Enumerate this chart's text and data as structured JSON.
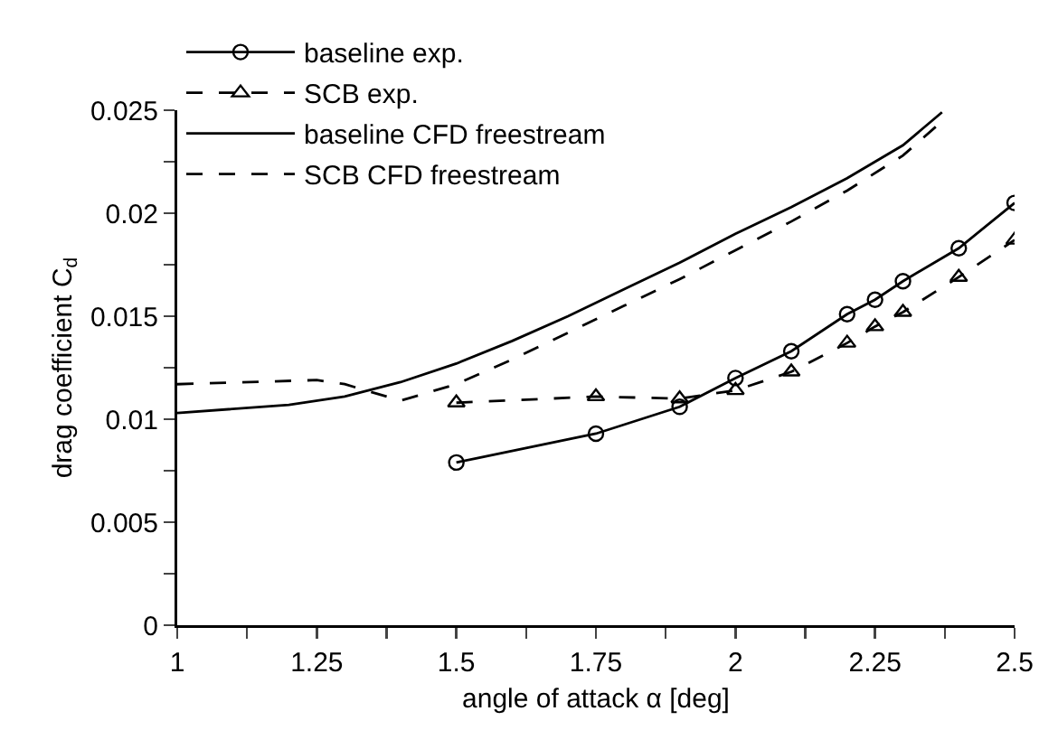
{
  "chart_data": {
    "type": "line",
    "xlabel": "angle of attack α [deg]",
    "ylabel": "drag coefficient C$_{d}$",
    "xlim": [
      1,
      2.5
    ],
    "ylim": [
      0,
      0.025
    ],
    "xticks": [
      1,
      {
        "value": 1.125,
        "label": null
      },
      1.25,
      {
        "value": 1.375,
        "label": null
      },
      1.5,
      {
        "value": 1.625,
        "label": null
      },
      1.75,
      {
        "value": 1.875,
        "label": null
      },
      2,
      {
        "value": 2.125,
        "label": null
      },
      2.25,
      {
        "value": 2.375,
        "label": null
      },
      2.5
    ],
    "yticks": [
      0,
      {
        "value": 0.0025,
        "label": null
      },
      0.005,
      {
        "value": 0.0075,
        "label": null
      },
      0.01,
      {
        "value": 0.0125,
        "label": null
      },
      0.015,
      {
        "value": 0.0175,
        "label": null
      },
      0.02,
      {
        "value": 0.0225,
        "label": null
      },
      0.025
    ],
    "grid": false,
    "legend": "top left",
    "series": [
      {
        "name": "baseline exp.",
        "color": "#000000",
        "marker": "circle",
        "line_style": "solid",
        "x": [
          1.5,
          1.75,
          1.9,
          2.0,
          2.1,
          2.2,
          2.25,
          2.3,
          2.4,
          2.5
        ],
        "values": [
          0.0079,
          0.0093,
          0.0106,
          0.012,
          0.0133,
          0.0151,
          0.0158,
          0.0167,
          0.0183,
          0.0205
        ]
      },
      {
        "name": "SCB exp.",
        "color": "#000000",
        "marker": "triangle",
        "line_style": "dashed",
        "x": [
          1.5,
          1.75,
          1.9,
          2.0,
          2.1,
          2.2,
          2.25,
          2.3,
          2.4,
          2.5
        ],
        "values": [
          0.0108,
          0.0111,
          0.011,
          0.0114,
          0.0123,
          0.0137,
          0.0145,
          0.0152,
          0.0169,
          0.0187
        ]
      },
      {
        "name": "baseline CFD freestream",
        "color": "#000000",
        "marker": "none",
        "line_style": "solid",
        "x": [
          1,
          1.2,
          1.3,
          1.4,
          1.5,
          1.6,
          1.7,
          1.8,
          1.9,
          2.0,
          2.1,
          2.2,
          2.3,
          2.37
        ],
        "values": [
          0.0103,
          0.0107,
          0.0111,
          0.0118,
          0.0127,
          0.0138,
          0.015,
          0.0163,
          0.0176,
          0.019,
          0.0203,
          0.0217,
          0.0233,
          0.0249
        ]
      },
      {
        "name": "SCB CFD freestream",
        "color": "#000000",
        "marker": "none",
        "line_style": "dashed",
        "x": [
          1,
          1.25,
          1.3,
          1.35,
          1.4,
          1.5,
          1.6,
          1.7,
          1.8,
          1.9,
          2.0,
          2.1,
          2.2,
          2.3,
          2.38
        ],
        "values": [
          0.0117,
          0.0119,
          0.0117,
          0.0113,
          0.0109,
          0.0117,
          0.0129,
          0.0142,
          0.0155,
          0.0168,
          0.0182,
          0.0196,
          0.0211,
          0.0228,
          0.0247
        ]
      }
    ]
  }
}
